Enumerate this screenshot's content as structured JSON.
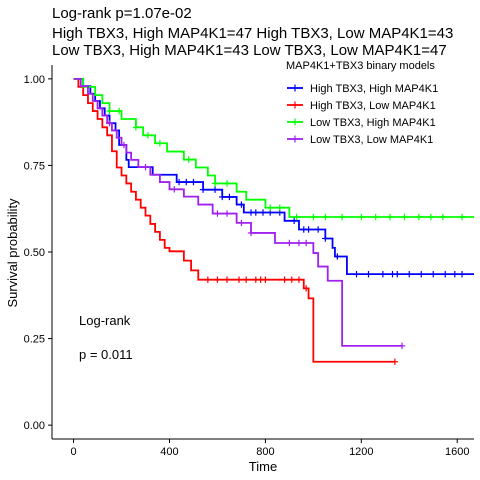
{
  "chart_data": {
    "type": "line",
    "title_lines": [
      "Log-rank p=1.07e-02",
      "High TBX3, High MAP4K1=47 High TBX3, Low MAP4K1=43",
      "Low TBX3, High MAP4K1=43 Low TBX3, Low MAP4K1=47"
    ],
    "xlabel": "Time",
    "ylabel": "Survival probability",
    "xlim": [
      -90,
      1670
    ],
    "ylim": [
      -0.04,
      1.04
    ],
    "x_ticks": [
      0,
      400,
      800,
      1200,
      1600
    ],
    "y_ticks": [
      0.0,
      0.25,
      0.5,
      0.75,
      1.0
    ],
    "x_tick_labels": [
      "0",
      "400",
      "800",
      "1200",
      "1600"
    ],
    "y_tick_labels": [
      "0.00",
      "0.25",
      "0.50",
      "0.75",
      "1.00"
    ],
    "legend": {
      "title": "MAP4K1+TBX3 binary models",
      "placement": "top-right"
    },
    "annotations": [
      "Log-rank",
      "p = 0.011"
    ],
    "series": [
      {
        "name": "High TBX3, High MAP4K1",
        "color": "#0000ff",
        "steps": [
          [
            0,
            1.0
          ],
          [
            40,
            0.979
          ],
          [
            70,
            0.957
          ],
          [
            90,
            0.936
          ],
          [
            110,
            0.915
          ],
          [
            130,
            0.894
          ],
          [
            150,
            0.872
          ],
          [
            175,
            0.851
          ],
          [
            190,
            0.809
          ],
          [
            220,
            0.766
          ],
          [
            230,
            0.745
          ],
          [
            330,
            0.723
          ],
          [
            430,
            0.702
          ],
          [
            540,
            0.68
          ],
          [
            620,
            0.659
          ],
          [
            680,
            0.637
          ],
          [
            710,
            0.614
          ],
          [
            880,
            0.59
          ],
          [
            940,
            0.565
          ],
          [
            1050,
            0.539
          ],
          [
            1080,
            0.512
          ],
          [
            1090,
            0.487
          ],
          [
            1140,
            0.436
          ],
          [
            1670,
            0.436
          ]
        ],
        "censor_times": [
          440,
          470,
          500,
          540,
          590,
          620,
          650,
          700,
          740,
          760,
          790,
          820,
          860,
          920,
          960,
          980,
          1020,
          1050,
          1100,
          1180,
          1230,
          1290,
          1330,
          1350,
          1400,
          1450,
          1500,
          1550,
          1590,
          1620
        ]
      },
      {
        "name": "High TBX3, Low MAP4K1",
        "color": "#ff0000",
        "steps": [
          [
            0,
            1.0
          ],
          [
            20,
            0.977
          ],
          [
            40,
            0.953
          ],
          [
            60,
            0.93
          ],
          [
            80,
            0.907
          ],
          [
            100,
            0.884
          ],
          [
            120,
            0.86
          ],
          [
            140,
            0.837
          ],
          [
            160,
            0.791
          ],
          [
            180,
            0.744
          ],
          [
            200,
            0.721
          ],
          [
            220,
            0.698
          ],
          [
            240,
            0.674
          ],
          [
            260,
            0.651
          ],
          [
            280,
            0.628
          ],
          [
            300,
            0.605
          ],
          [
            320,
            0.581
          ],
          [
            340,
            0.558
          ],
          [
            360,
            0.535
          ],
          [
            380,
            0.512
          ],
          [
            400,
            0.502
          ],
          [
            460,
            0.475
          ],
          [
            490,
            0.447
          ],
          [
            520,
            0.42
          ],
          [
            960,
            0.395
          ],
          [
            980,
            0.366
          ],
          [
            1000,
            0.183
          ],
          [
            1340,
            0.183
          ]
        ],
        "censor_times": [
          560,
          600,
          640,
          690,
          720,
          760,
          780,
          800,
          880,
          910,
          940,
          970,
          1340
        ]
      },
      {
        "name": "Low TBX3, High MAP4K1",
        "color": "#00ff00",
        "steps": [
          [
            0,
            1.0
          ],
          [
            40,
            0.977
          ],
          [
            90,
            0.953
          ],
          [
            120,
            0.93
          ],
          [
            150,
            0.907
          ],
          [
            200,
            0.884
          ],
          [
            260,
            0.86
          ],
          [
            290,
            0.837
          ],
          [
            340,
            0.814
          ],
          [
            390,
            0.79
          ],
          [
            460,
            0.767
          ],
          [
            510,
            0.744
          ],
          [
            560,
            0.721
          ],
          [
            590,
            0.698
          ],
          [
            680,
            0.674
          ],
          [
            720,
            0.651
          ],
          [
            800,
            0.628
          ],
          [
            900,
            0.601
          ],
          [
            1670,
            0.601
          ]
        ],
        "censor_times": [
          150,
          190,
          260,
          310,
          360,
          480,
          590,
          640,
          820,
          860,
          930,
          1000,
          1050,
          1120,
          1200,
          1260,
          1320,
          1380,
          1440,
          1490,
          1540,
          1620
        ]
      },
      {
        "name": "Low TBX3, Low MAP4K1",
        "color": "#a020f0",
        "steps": [
          [
            0,
            1.0
          ],
          [
            30,
            0.979
          ],
          [
            60,
            0.957
          ],
          [
            80,
            0.936
          ],
          [
            100,
            0.915
          ],
          [
            120,
            0.894
          ],
          [
            140,
            0.872
          ],
          [
            160,
            0.851
          ],
          [
            180,
            0.83
          ],
          [
            200,
            0.809
          ],
          [
            220,
            0.787
          ],
          [
            240,
            0.766
          ],
          [
            270,
            0.745
          ],
          [
            320,
            0.723
          ],
          [
            360,
            0.702
          ],
          [
            400,
            0.681
          ],
          [
            460,
            0.66
          ],
          [
            520,
            0.637
          ],
          [
            580,
            0.611
          ],
          [
            680,
            0.584
          ],
          [
            740,
            0.555
          ],
          [
            840,
            0.526
          ],
          [
            1000,
            0.497
          ],
          [
            1020,
            0.458
          ],
          [
            1060,
            0.417
          ],
          [
            1120,
            0.229
          ],
          [
            1370,
            0.229
          ]
        ],
        "censor_times": [
          150,
          210,
          300,
          420,
          600,
          640,
          700,
          740,
          900,
          940,
          970,
          1370
        ]
      }
    ]
  }
}
